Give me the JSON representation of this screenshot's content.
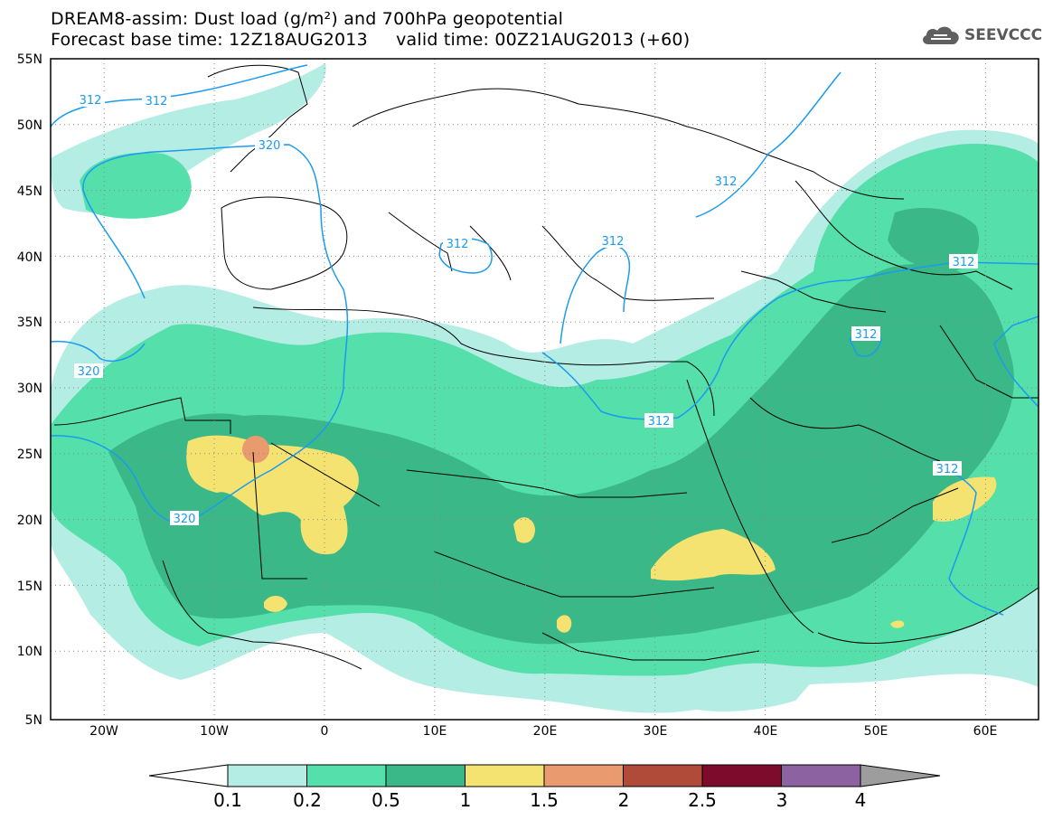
{
  "header": {
    "line1": "DREAM8-assim: Dust load (g/m²) and 700hPa geopotential",
    "line2": "Forecast base time: 12Z18AUG2013     valid time: 00Z21AUG2013 (+60)"
  },
  "logo": {
    "text": "SEEVCCC",
    "icon": "cloud-icon"
  },
  "axes": {
    "lat_labels": [
      "55N",
      "50N",
      "45N",
      "40N",
      "35N",
      "30N",
      "25N",
      "20N",
      "15N",
      "10N",
      "5N"
    ],
    "lon_labels": [
      "20W",
      "10W",
      "0",
      "10E",
      "20E",
      "30E",
      "40E",
      "50E",
      "60E"
    ]
  },
  "contours": {
    "labels": [
      "312",
      "312",
      "320",
      "312",
      "312",
      "312",
      "320",
      "312",
      "320",
      "312",
      "312",
      "312"
    ]
  },
  "colorbar": {
    "ticks": [
      "0.1",
      "0.2",
      "0.5",
      "1",
      "1.5",
      "2",
      "2.5",
      "3",
      "4"
    ],
    "colors": [
      "#b4ede4",
      "#55dfaa",
      "#3bb887",
      "#f4e370",
      "#e99a6f",
      "#b04b39",
      "#7d0b2b",
      "#8d62a0",
      "#9d9d9d"
    ]
  }
}
